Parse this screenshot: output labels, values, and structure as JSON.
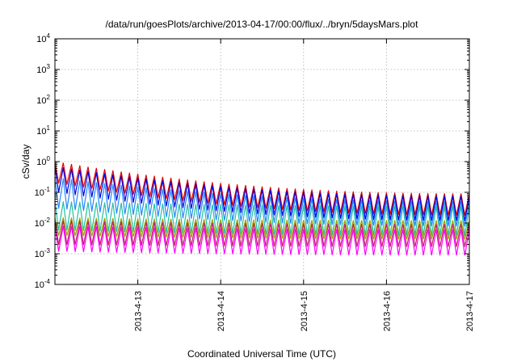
{
  "chart_data": {
    "type": "line",
    "title": "/data/run/goesPlots/archive/2013-04-17/00:00/flux/../bryn/5daysMars.plot",
    "xlabel": "Coordinated Universal Time (UTC)",
    "ylabel": "cSv/day",
    "x_range": [
      "2013-04-12",
      "2013-04-17"
    ],
    "ylim": [
      0.0001,
      10000
    ],
    "y_scale": "log",
    "grid": true,
    "x_ticks": [
      "2013-4-13",
      "2013-4-14",
      "2013-4-15",
      "2013-4-16",
      "2013-4-17"
    ],
    "y_ticks": [
      {
        "base": "10",
        "exp": "-4"
      },
      {
        "base": "10",
        "exp": "-3"
      },
      {
        "base": "10",
        "exp": "-2"
      },
      {
        "base": "10",
        "exp": "-1"
      },
      {
        "base": "10",
        "exp": "0"
      },
      {
        "base": "10",
        "exp": "1"
      },
      {
        "base": "10",
        "exp": "2"
      },
      {
        "base": "10",
        "exp": "3"
      },
      {
        "base": "10",
        "exp": "4"
      }
    ],
    "sawtooth": {
      "description": "periodic sawtooth dose-rate traces, 10 cycles per day",
      "cycles_per_day": 10,
      "drop_fraction": 0.45
    },
    "series": [
      {
        "color": "#e00000",
        "peak_start": 1.0,
        "peak_end": 0.09,
        "trough_start": 0.2,
        "trough_end": 0.018
      },
      {
        "color": "#0000e0",
        "peak_start": 0.7,
        "peak_end": 0.075,
        "trough_start": 0.1,
        "trough_end": 0.012
      },
      {
        "color": "#2288ff",
        "peak_start": 0.3,
        "peak_end": 0.05,
        "trough_start": 0.03,
        "trough_end": 0.008
      },
      {
        "color": "#22c0a0",
        "peak_start": 0.05,
        "peak_end": 0.035,
        "trough_start": 0.006,
        "trough_end": 0.004
      },
      {
        "color": "#a0a000",
        "peak_start": 0.015,
        "peak_end": 0.012,
        "trough_start": 0.004,
        "trough_end": 0.003
      },
      {
        "color": "#c02070",
        "peak_start": 0.012,
        "peak_end": 0.009,
        "trough_start": 0.002,
        "trough_end": 0.0017
      },
      {
        "color": "#ff00ff",
        "peak_start": 0.008,
        "peak_end": 0.006,
        "trough_start": 0.0012,
        "trough_end": 0.0009
      }
    ]
  }
}
